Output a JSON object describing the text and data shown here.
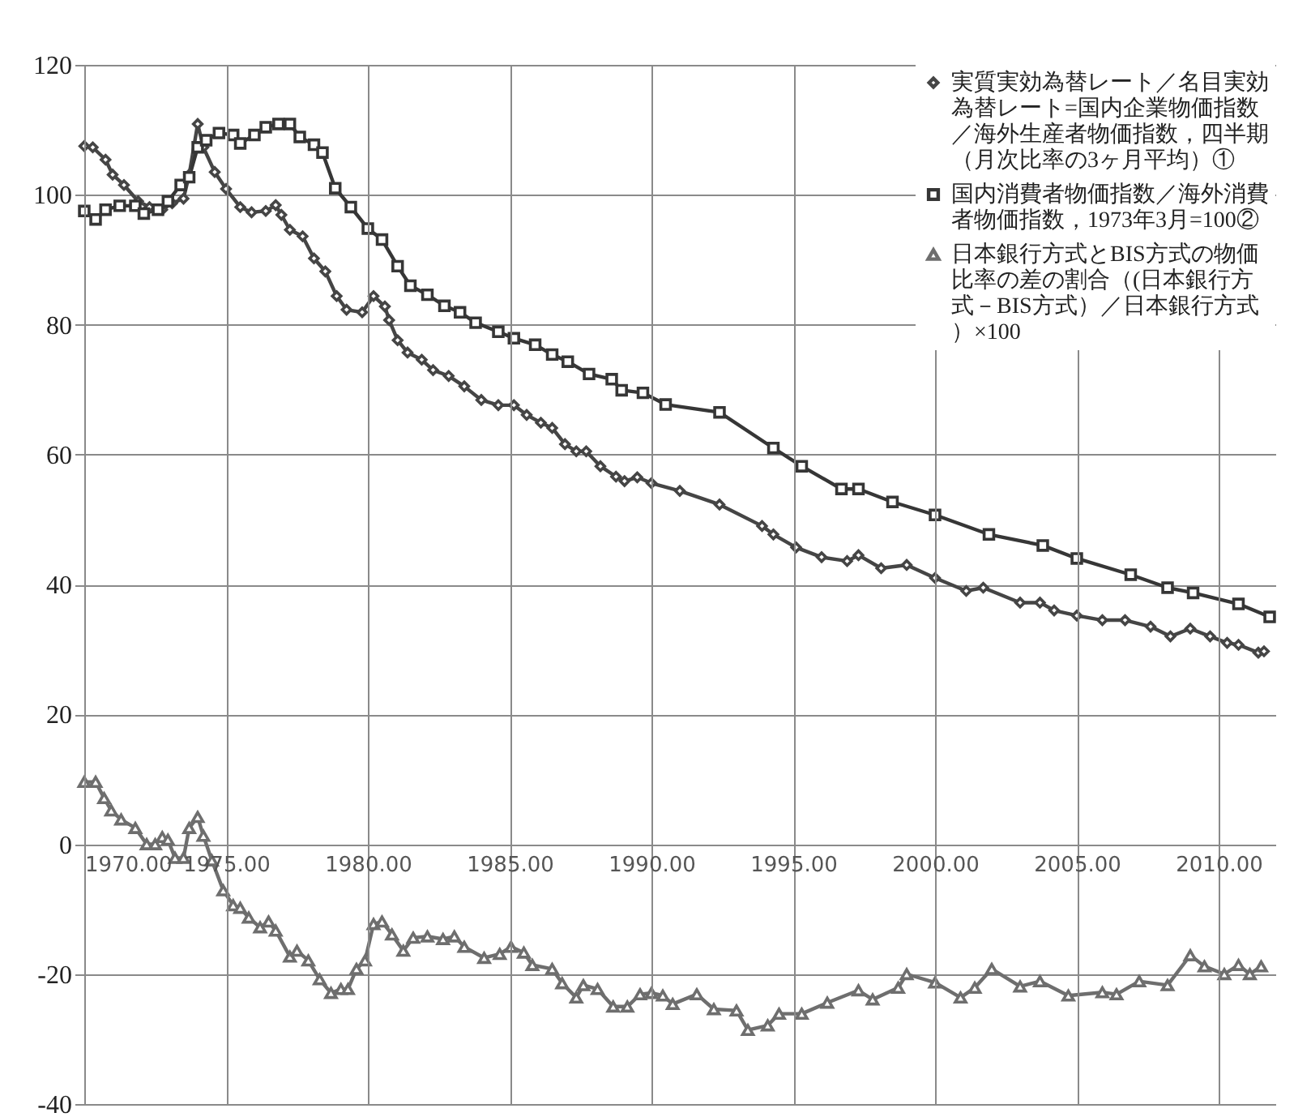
{
  "chart_data": {
    "type": "line",
    "xlim": [
      1970,
      2012
    ],
    "ylim": [
      -40,
      120
    ],
    "xticks": [
      {
        "value": 1970,
        "label": "1970.00"
      },
      {
        "value": 1975,
        "label": "1975.00"
      },
      {
        "value": 1980,
        "label": "1980.00"
      },
      {
        "value": 1985,
        "label": "1985.00"
      },
      {
        "value": 1990,
        "label": "1990.00"
      },
      {
        "value": 1995,
        "label": "1995.00"
      },
      {
        "value": 2000,
        "label": "2000.00"
      },
      {
        "value": 2005,
        "label": "2005.00"
      },
      {
        "value": 2010,
        "label": "2010.00"
      }
    ],
    "yticks": [
      -40,
      -20,
      0,
      20,
      40,
      60,
      80,
      100,
      120
    ],
    "grid": true,
    "legend": "top right",
    "line_style": "solid",
    "series": [
      {
        "name": "実質実効為替レート／名目実効為替レート=国内企業物価指数／海外生産者物価指数，四半期（月次比率の3ヶ月平均）①",
        "color": "#454545",
        "marker": "diamond",
        "x": [
          1970.0,
          1970.3,
          1970.75,
          1971.0,
          1971.4,
          1971.9,
          1972.3,
          1972.75,
          1973.1,
          1973.5,
          1973.7,
          1974.0,
          1974.2,
          1974.6,
          1975.0,
          1975.5,
          1975.9,
          1976.4,
          1976.75,
          1976.95,
          1977.25,
          1977.7,
          1978.1,
          1978.5,
          1978.9,
          1979.25,
          1979.8,
          1980.2,
          1980.6,
          1980.75,
          1981.05,
          1981.4,
          1981.9,
          1982.3,
          1982.85,
          1983.4,
          1984.0,
          1984.6,
          1985.15,
          1985.6,
          1986.1,
          1986.5,
          1986.95,
          1987.35,
          1987.7,
          1988.2,
          1988.75,
          1989.05,
          1989.5,
          1990.0,
          1991.0,
          1992.4,
          1993.9,
          1994.3,
          1995.1,
          1996.0,
          1996.9,
          1997.3,
          1998.1,
          1999.0,
          2000.0,
          2001.1,
          2001.7,
          2003.0,
          2003.7,
          2004.2,
          2005.0,
          2005.9,
          2006.7,
          2007.6,
          2008.3,
          2009.0,
          2009.7,
          2010.3,
          2010.7,
          2011.4,
          2011.6
        ],
        "values": [
          107.5,
          107.3,
          105.4,
          103.1,
          101.5,
          99.0,
          98.1,
          97.7,
          98.7,
          99.4,
          103.1,
          110.9,
          107.3,
          103.5,
          100.9,
          98.1,
          97.3,
          97.5,
          98.4,
          96.9,
          94.6,
          93.6,
          90.2,
          88.2,
          84.4,
          82.3,
          81.9,
          84.4,
          82.8,
          80.7,
          77.6,
          75.7,
          74.6,
          73.0,
          72.1,
          70.5,
          68.4,
          67.6,
          67.6,
          66.1,
          64.9,
          64.1,
          61.6,
          60.5,
          60.5,
          58.2,
          56.6,
          55.9,
          56.5,
          55.6,
          54.4,
          52.3,
          49.0,
          47.7,
          45.7,
          44.2,
          43.6,
          44.5,
          42.5,
          43.0,
          41.0,
          39.0,
          39.5,
          37.2,
          37.2,
          36.0,
          35.2,
          34.5,
          34.5,
          33.5,
          32.0,
          33.2,
          32.0,
          31.0,
          30.7,
          29.5,
          29.7
        ]
      },
      {
        "name": "国内消費者物価指数／海外消費者物価指数，1973年3月=100②",
        "color": "#363636",
        "marker": "square",
        "x": [
          1970.0,
          1970.4,
          1970.75,
          1971.25,
          1971.8,
          1972.1,
          1972.6,
          1972.95,
          1973.4,
          1973.7,
          1974.0,
          1974.3,
          1974.75,
          1975.25,
          1975.5,
          1976.0,
          1976.4,
          1976.85,
          1977.25,
          1977.6,
          1978.1,
          1978.4,
          1978.85,
          1979.4,
          1980.0,
          1980.5,
          1981.05,
          1981.5,
          1982.1,
          1982.7,
          1983.25,
          1983.8,
          1984.6,
          1985.15,
          1985.9,
          1986.5,
          1987.05,
          1987.8,
          1988.6,
          1988.95,
          1989.7,
          1990.5,
          1992.4,
          1994.3,
          1995.3,
          1996.7,
          1997.3,
          1998.5,
          2000.0,
          2001.9,
          2003.8,
          2005.0,
          2006.9,
          2008.2,
          2009.1,
          2010.7,
          2011.8
        ],
        "values": [
          97.5,
          96.2,
          97.7,
          98.3,
          98.3,
          97.1,
          97.7,
          99.0,
          101.5,
          102.7,
          107.3,
          108.4,
          109.5,
          109.2,
          107.9,
          109.2,
          110.4,
          110.9,
          110.9,
          108.9,
          107.7,
          106.5,
          101.0,
          98.1,
          94.8,
          93.1,
          89.0,
          86.0,
          84.6,
          82.9,
          81.9,
          80.3,
          78.9,
          77.9,
          76.9,
          75.4,
          74.3,
          72.4,
          71.6,
          69.9,
          69.5,
          67.7,
          66.5,
          61.0,
          58.2,
          54.7,
          54.7,
          52.7,
          50.7,
          47.7,
          46.0,
          44.0,
          41.5,
          39.5,
          38.7,
          37.0,
          35.0
        ]
      },
      {
        "name": "日本銀行方式とBIS方式の物価比率の差の割合（(日本銀行方式－BIS方式）／日本銀行方式）×100",
        "color": "#6e6e6e",
        "marker": "triangle",
        "x": [
          1970.0,
          1970.4,
          1970.7,
          1970.95,
          1971.3,
          1971.8,
          1972.2,
          1972.5,
          1972.75,
          1972.95,
          1973.2,
          1973.5,
          1973.7,
          1974.0,
          1974.2,
          1974.5,
          1974.9,
          1975.25,
          1975.5,
          1975.8,
          1976.2,
          1976.5,
          1976.75,
          1977.25,
          1977.5,
          1977.9,
          1978.3,
          1978.7,
          1979.05,
          1979.3,
          1979.6,
          1979.9,
          1980.2,
          1980.5,
          1980.85,
          1981.25,
          1981.6,
          1982.1,
          1982.65,
          1983.05,
          1983.4,
          1984.1,
          1984.65,
          1985.05,
          1985.5,
          1985.8,
          1986.5,
          1986.85,
          1987.35,
          1987.6,
          1988.1,
          1988.65,
          1989.15,
          1989.6,
          1990.0,
          1990.4,
          1990.75,
          1991.6,
          1992.2,
          1993.0,
          1993.4,
          1994.1,
          1994.5,
          1995.3,
          1996.2,
          1997.3,
          1997.8,
          1998.7,
          1999.0,
          2000.0,
          2000.9,
          2001.4,
          2002.0,
          2003.0,
          2003.7,
          2004.7,
          2005.9,
          2006.4,
          2007.2,
          2008.2,
          2009.0,
          2009.5,
          2010.2,
          2010.7,
          2011.1,
          2011.5
        ],
        "values": [
          9.6,
          9.6,
          7.1,
          5.2,
          3.8,
          2.5,
          0.0,
          0.0,
          1.1,
          0.7,
          -2.1,
          -2.1,
          2.5,
          4.2,
          1.3,
          -2.5,
          -7.1,
          -9.4,
          -9.8,
          -11.3,
          -12.8,
          -11.9,
          -13.3,
          -17.3,
          -16.4,
          -17.9,
          -20.8,
          -22.9,
          -22.3,
          -22.3,
          -19.2,
          -17.9,
          -12.3,
          -11.9,
          -13.9,
          -16.4,
          -14.4,
          -14.2,
          -14.6,
          -14.2,
          -15.8,
          -17.5,
          -16.9,
          -15.8,
          -16.7,
          -18.6,
          -19.2,
          -21.4,
          -23.6,
          -21.7,
          -22.3,
          -25.0,
          -25.0,
          -23.1,
          -22.9,
          -23.3,
          -24.6,
          -23.1,
          -25.4,
          -25.6,
          -28.6,
          -27.9,
          -26.1,
          -26.1,
          -24.4,
          -22.5,
          -23.9,
          -22.1,
          -20.0,
          -21.3,
          -23.6,
          -22.1,
          -19.2,
          -21.9,
          -21.1,
          -23.3,
          -22.8,
          -23.1,
          -21.1,
          -21.7,
          -17.1,
          -18.8,
          -20.0,
          -18.6,
          -20.0,
          -18.8
        ]
      }
    ]
  }
}
